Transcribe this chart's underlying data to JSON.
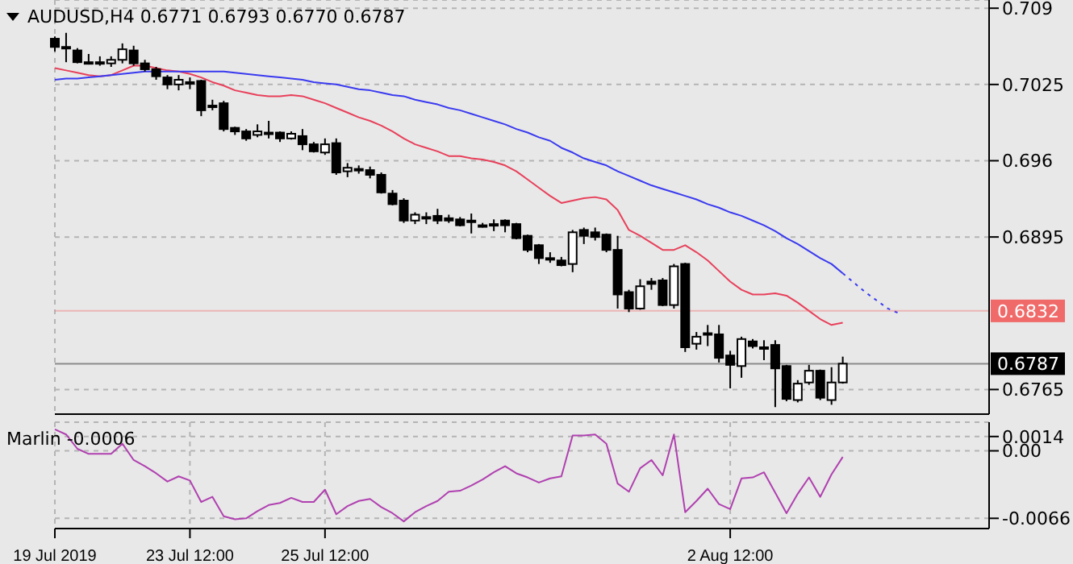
{
  "chart_data": [
    {
      "type": "candlestick",
      "title": "AUDUSD,H4 0.6771 0.6793 0.6770 0.6787",
      "color": "#000000",
      "categories": [
        null,
        null,
        null,
        null,
        null,
        null,
        null,
        null,
        null,
        null,
        null,
        null,
        null,
        null,
        null,
        null,
        null,
        null,
        null,
        null,
        null,
        null,
        null,
        null,
        null,
        null,
        null,
        null,
        null,
        null,
        null,
        null,
        null,
        null,
        null,
        null,
        null,
        null,
        null,
        null,
        null,
        null,
        null,
        null,
        null,
        null,
        null,
        null,
        null,
        null,
        null,
        null,
        null,
        null,
        null,
        null,
        null,
        null,
        null,
        null,
        null,
        null,
        null,
        null,
        null,
        null,
        null,
        null,
        null,
        null,
        null,
        null,
        null,
        null,
        null,
        null,
        null,
        null,
        null,
        null,
        null,
        null,
        null,
        null
      ],
      "ohlc": [
        [
          0.7064,
          0.7066,
          0.7053,
          0.7057
        ],
        [
          0.7057,
          0.7069,
          0.7044,
          0.7057
        ],
        [
          0.7054,
          0.7056,
          0.7043,
          0.7044
        ],
        [
          0.7044,
          0.7051,
          0.7042,
          0.7043
        ],
        [
          0.7044,
          0.7049,
          0.7041,
          0.7044
        ],
        [
          0.7043,
          0.7049,
          0.704,
          0.7046
        ],
        [
          0.7046,
          0.706,
          0.7043,
          0.7055
        ],
        [
          0.7054,
          0.7058,
          0.7041,
          0.7043
        ],
        [
          0.7043,
          0.7046,
          0.7036,
          0.7038
        ],
        [
          0.7038,
          0.704,
          0.7029,
          0.7032
        ],
        [
          0.7031,
          0.7033,
          0.7021,
          0.7025
        ],
        [
          0.7025,
          0.7033,
          0.702,
          0.7029
        ],
        [
          0.7027,
          0.7031,
          0.7021,
          0.7027
        ],
        [
          0.7028,
          0.7029,
          0.6998,
          0.7003
        ],
        [
          0.7007,
          0.7012,
          0.7003,
          0.7007
        ],
        [
          0.7009,
          0.7011,
          0.6985,
          0.6987
        ],
        [
          0.6988,
          0.6989,
          0.6982,
          0.6985
        ],
        [
          0.6985,
          0.6987,
          0.6977,
          0.6979
        ],
        [
          0.6982,
          0.6991,
          0.698,
          0.6985
        ],
        [
          0.6984,
          0.6994,
          0.6979,
          0.6984
        ],
        [
          0.6984,
          0.6985,
          0.6976,
          0.6979
        ],
        [
          0.6979,
          0.6985,
          0.6978,
          0.6983
        ],
        [
          0.6981,
          0.6987,
          0.6969,
          0.6974
        ],
        [
          0.6974,
          0.6976,
          0.6967,
          0.6968
        ],
        [
          0.6967,
          0.6979,
          0.6965,
          0.6974
        ],
        [
          0.6975,
          0.6979,
          0.6948,
          0.695
        ],
        [
          0.6951,
          0.6958,
          0.6946,
          0.6954
        ],
        [
          0.6953,
          0.6956,
          0.6949,
          0.6953
        ],
        [
          0.6952,
          0.6955,
          0.6945,
          0.6948
        ],
        [
          0.6948,
          0.695,
          0.6932,
          0.6933
        ],
        [
          0.6932,
          0.6935,
          0.6922,
          0.6923
        ],
        [
          0.6926,
          0.6928,
          0.6907,
          0.6909
        ],
        [
          0.6909,
          0.6916,
          0.6906,
          0.6914
        ],
        [
          0.6912,
          0.6916,
          0.6906,
          0.6912
        ],
        [
          0.6913,
          0.6919,
          0.6906,
          0.6909
        ],
        [
          0.6911,
          0.6914,
          0.6907,
          0.6909
        ],
        [
          0.691,
          0.6912,
          0.6904,
          0.6905
        ],
        [
          0.6909,
          0.6915,
          0.6898,
          0.6909
        ],
        [
          0.6905,
          0.6907,
          0.6903,
          0.6905
        ],
        [
          0.6906,
          0.691,
          0.69,
          0.6906
        ],
        [
          0.6909,
          0.691,
          0.6899,
          0.6905
        ],
        [
          0.6906,
          0.6907,
          0.6893,
          0.6894
        ],
        [
          0.6896,
          0.6897,
          0.6882,
          0.6884
        ],
        [
          0.6888,
          0.6889,
          0.6872,
          0.6877
        ],
        [
          0.6877,
          0.6882,
          0.6873,
          0.6877
        ],
        [
          0.6875,
          0.6878,
          0.687,
          0.6871
        ],
        [
          0.6872,
          0.6901,
          0.6865,
          0.6899
        ],
        [
          0.6901,
          0.6903,
          0.6889,
          0.6896
        ],
        [
          0.6899,
          0.6903,
          0.6892,
          0.6895
        ],
        [
          0.6897,
          0.6898,
          0.6882,
          0.6884
        ],
        [
          0.6884,
          0.6896,
          0.6834,
          0.6846
        ],
        [
          0.6848,
          0.685,
          0.6831,
          0.6834
        ],
        [
          0.6834,
          0.6859,
          0.6833,
          0.6853
        ],
        [
          0.6857,
          0.686,
          0.685,
          0.6855
        ],
        [
          0.6858,
          0.686,
          0.6836,
          0.6837
        ],
        [
          0.6837,
          0.6872,
          0.6834,
          0.687
        ],
        [
          0.6872,
          0.6873,
          0.6797,
          0.6801
        ],
        [
          0.6804,
          0.6814,
          0.6799,
          0.681
        ],
        [
          0.6813,
          0.682,
          0.6802,
          0.6813
        ],
        [
          0.6812,
          0.682,
          0.6788,
          0.6792
        ],
        [
          0.6794,
          0.6798,
          0.6766,
          0.6786
        ],
        [
          0.6785,
          0.681,
          0.6775,
          0.6808
        ],
        [
          0.6806,
          0.6808,
          0.68,
          0.6802
        ],
        [
          0.6801,
          0.6807,
          0.679,
          0.6801
        ],
        [
          0.6803,
          0.6807,
          0.675,
          0.6783
        ],
        [
          0.6785,
          0.6786,
          0.6755,
          0.6757
        ],
        [
          0.6756,
          0.6773,
          0.6754,
          0.677
        ],
        [
          0.6771,
          0.6786,
          0.6769,
          0.6781
        ],
        [
          0.6781,
          0.6782,
          0.6756,
          0.6758
        ],
        [
          0.6756,
          0.6784,
          0.6752,
          0.6771
        ],
        [
          0.6771,
          0.6793,
          0.677,
          0.6787
        ],
        null,
        null,
        null,
        null,
        null,
        null,
        null,
        null,
        null,
        null,
        null,
        null,
        null
      ],
      "series": [
        {
          "type": "line",
          "color": "#e8405a",
          "line_style": "solid",
          "values": [
            0.7039,
            0.7037,
            0.7035,
            0.7033,
            0.7032,
            0.7033,
            0.7037,
            0.7041,
            0.7041,
            0.7039,
            0.7037,
            0.7036,
            0.7034,
            0.7031,
            0.7027,
            0.7024,
            0.702,
            0.7018,
            0.7016,
            0.7015,
            0.7015,
            0.7016,
            0.7015,
            0.7012,
            0.7009,
            0.7005,
            0.7001,
            0.6997,
            0.6994,
            0.699,
            0.6985,
            0.6979,
            0.6974,
            0.6971,
            0.6968,
            0.6964,
            0.6964,
            0.6962,
            0.6961,
            0.6959,
            0.6956,
            0.6951,
            0.6944,
            0.6937,
            0.693,
            0.6924,
            0.6926,
            0.6928,
            0.6929,
            0.6927,
            0.6918,
            0.6901,
            0.6896,
            0.689,
            0.6884,
            0.6884,
            0.6888,
            0.6882,
            0.6875,
            0.6866,
            0.6857,
            0.685,
            0.6846,
            0.6846,
            0.6847,
            0.6845,
            0.6839,
            0.6832,
            0.6825,
            0.682,
            0.6822,
            null,
            null,
            null,
            null,
            null,
            null,
            null,
            null,
            null,
            null,
            null,
            null,
            null
          ]
        },
        {
          "type": "line",
          "color": "#3a3af0",
          "line_style": "solid",
          "values": [
            0.7029,
            0.703,
            0.703,
            0.7031,
            0.7032,
            0.7033,
            0.7034,
            0.7035,
            0.7036,
            0.7036,
            0.7036,
            0.7036,
            0.7036,
            0.7036,
            0.7036,
            0.7036,
            0.7035,
            0.7034,
            0.7033,
            0.7032,
            0.7031,
            0.703,
            0.7029,
            0.7027,
            0.7026,
            0.7025,
            0.7023,
            0.7021,
            0.702,
            0.7018,
            0.7016,
            0.7015,
            0.7012,
            0.701,
            0.7008,
            0.7005,
            0.7003,
            0.7,
            0.6997,
            0.6994,
            0.6991,
            0.6987,
            0.6984,
            0.698,
            0.6977,
            0.6971,
            0.6967,
            0.6962,
            0.6959,
            0.6956,
            0.6951,
            0.6947,
            0.6943,
            0.6939,
            0.6936,
            0.6933,
            0.693,
            0.6927,
            0.6923,
            0.692,
            0.6916,
            0.6913,
            0.6909,
            0.6905,
            0.69,
            0.6894,
            0.6889,
            0.6883,
            0.6877,
            0.6872,
            0.6864,
            null,
            null,
            null,
            null,
            null,
            null,
            null,
            null,
            null,
            null,
            null,
            null,
            null
          ]
        },
        {
          "type": "line",
          "color": "#3a3af0",
          "line_style": "dotted",
          "values": [
            null,
            null,
            null,
            null,
            null,
            null,
            null,
            null,
            null,
            null,
            null,
            null,
            null,
            null,
            null,
            null,
            null,
            null,
            null,
            null,
            null,
            null,
            null,
            null,
            null,
            null,
            null,
            null,
            null,
            null,
            null,
            null,
            null,
            null,
            null,
            null,
            null,
            null,
            null,
            null,
            null,
            null,
            null,
            null,
            null,
            null,
            null,
            null,
            null,
            null,
            null,
            null,
            null,
            null,
            null,
            null,
            null,
            null,
            null,
            null,
            null,
            null,
            null,
            null,
            null,
            null,
            null,
            null,
            null,
            null,
            0.6864,
            0.6856,
            0.6848,
            0.6841,
            0.6834,
            0.683,
            null,
            null,
            null,
            null,
            null,
            null,
            null,
            null
          ]
        }
      ],
      "ylim": [
        0.6744,
        0.7097
      ],
      "yticks": [
        0.709,
        0.7025,
        0.696,
        0.6895,
        0.6765
      ],
      "ref_lines": [
        {
          "axis": "y",
          "value": 0.6832,
          "label": "0.6832",
          "color": "#f06a6a"
        },
        {
          "axis": "y",
          "value": 0.6787,
          "label": "0.6787",
          "color": "#000000"
        }
      ],
      "grid": true,
      "tick_labels": "y"
    },
    {
      "type": "line",
      "title": "Marlin -0.0006",
      "categories": [
        "19 Jul 2019",
        null,
        null,
        null,
        null,
        null,
        null,
        null,
        null,
        null,
        null,
        null,
        "23 Jul 12:00",
        null,
        null,
        null,
        null,
        null,
        null,
        null,
        null,
        null,
        null,
        null,
        "25 Jul 12:00",
        null,
        null,
        null,
        null,
        null,
        null,
        null,
        null,
        null,
        null,
        null,
        null,
        null,
        null,
        null,
        null,
        null,
        null,
        null,
        null,
        null,
        null,
        null,
        null,
        null,
        null,
        null,
        null,
        null,
        null,
        null,
        null,
        null,
        null,
        null,
        "2 Aug 12:00",
        null,
        null,
        null,
        null,
        null,
        null,
        null,
        null,
        null,
        null,
        null,
        null,
        null,
        null,
        null,
        null,
        null,
        null,
        null,
        null,
        null,
        null,
        null
      ],
      "series": [
        {
          "color": "#b040b0",
          "values": [
            0.0021,
            0.0016,
            0.0002,
            -0.0003,
            -0.0003,
            -0.0003,
            0.0007,
            -0.0009,
            -0.0015,
            -0.0022,
            -0.003,
            -0.0025,
            -0.0029,
            -0.005,
            -0.0045,
            -0.0064,
            -0.0067,
            -0.0066,
            -0.0059,
            -0.0053,
            -0.0051,
            -0.0046,
            -0.005,
            -0.005,
            -0.0038,
            -0.0062,
            -0.0054,
            -0.0049,
            -0.0047,
            -0.0055,
            -0.0061,
            -0.0069,
            -0.006,
            -0.0054,
            -0.0049,
            -0.004,
            -0.0039,
            -0.0034,
            -0.0028,
            -0.0021,
            -0.0015,
            -0.0022,
            -0.0026,
            -0.0031,
            -0.0027,
            -0.0025,
            0.0015,
            0.0015,
            0.0016,
            0.0007,
            -0.0032,
            -0.004,
            -0.0017,
            -0.0009,
            -0.0024,
            0.0016,
            -0.006,
            -0.0049,
            -0.0037,
            -0.0052,
            -0.0057,
            -0.0027,
            -0.0026,
            -0.0021,
            -0.0041,
            -0.0061,
            -0.0042,
            -0.0026,
            -0.0045,
            -0.0023,
            -0.0006,
            null,
            null,
            null,
            null,
            null,
            null,
            null,
            null,
            null,
            null,
            null,
            null,
            null
          ]
        }
      ],
      "ylim": [
        -0.0076,
        0.0028
      ],
      "yticks": [
        0.0014,
        {
          "value": 0,
          "label": "0.00"
        },
        -0.0066
      ],
      "grid": true
    }
  ]
}
